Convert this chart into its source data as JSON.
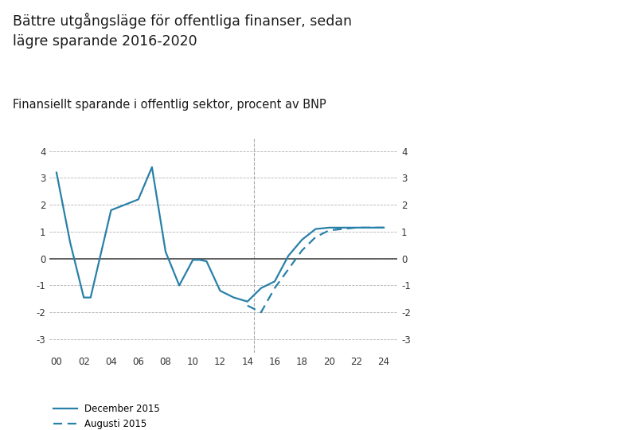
{
  "title": "Bättre utgångsläge för offentliga finanser, sedan\nlägre sparande 2016-2020",
  "subtitle": "Finansiellt sparande i offentlig sektor, procent av BNP",
  "title_fontsize": 12.5,
  "subtitle_fontsize": 10.5,
  "background_color": "#ffffff",
  "line_color": "#2980a8",
  "legend_dec": "December 2015",
  "legend_aug": "Augusti 2015",
  "ylim": [
    -3.5,
    4.5
  ],
  "xticks": [
    0,
    2,
    4,
    6,
    8,
    10,
    12,
    14,
    16,
    18,
    20,
    22,
    24
  ],
  "yticks": [
    -3,
    -2,
    -1,
    0,
    1,
    2,
    3,
    4
  ],
  "vline_x": 14.5,
  "dec2015_x": [
    0,
    1,
    2,
    2.5,
    4,
    5,
    6,
    7,
    8,
    9,
    10,
    10.5,
    11,
    12,
    13,
    14,
    15,
    16,
    17,
    18,
    19,
    20,
    21,
    22,
    23,
    24
  ],
  "dec2015_y": [
    3.2,
    0.6,
    -1.45,
    -1.45,
    1.8,
    2.0,
    2.2,
    3.4,
    0.25,
    -1.0,
    -0.05,
    -0.05,
    -0.1,
    -1.2,
    -1.45,
    -1.6,
    -1.1,
    -0.85,
    0.1,
    0.7,
    1.1,
    1.15,
    1.15,
    1.15,
    1.15,
    1.15
  ],
  "aug2015_x": [
    14,
    15,
    16,
    17,
    18,
    19,
    20,
    21,
    22,
    23,
    24
  ],
  "aug2015_y": [
    -1.75,
    -2.0,
    -1.1,
    -0.4,
    0.3,
    0.8,
    1.05,
    1.1,
    1.15,
    1.15,
    1.15
  ]
}
